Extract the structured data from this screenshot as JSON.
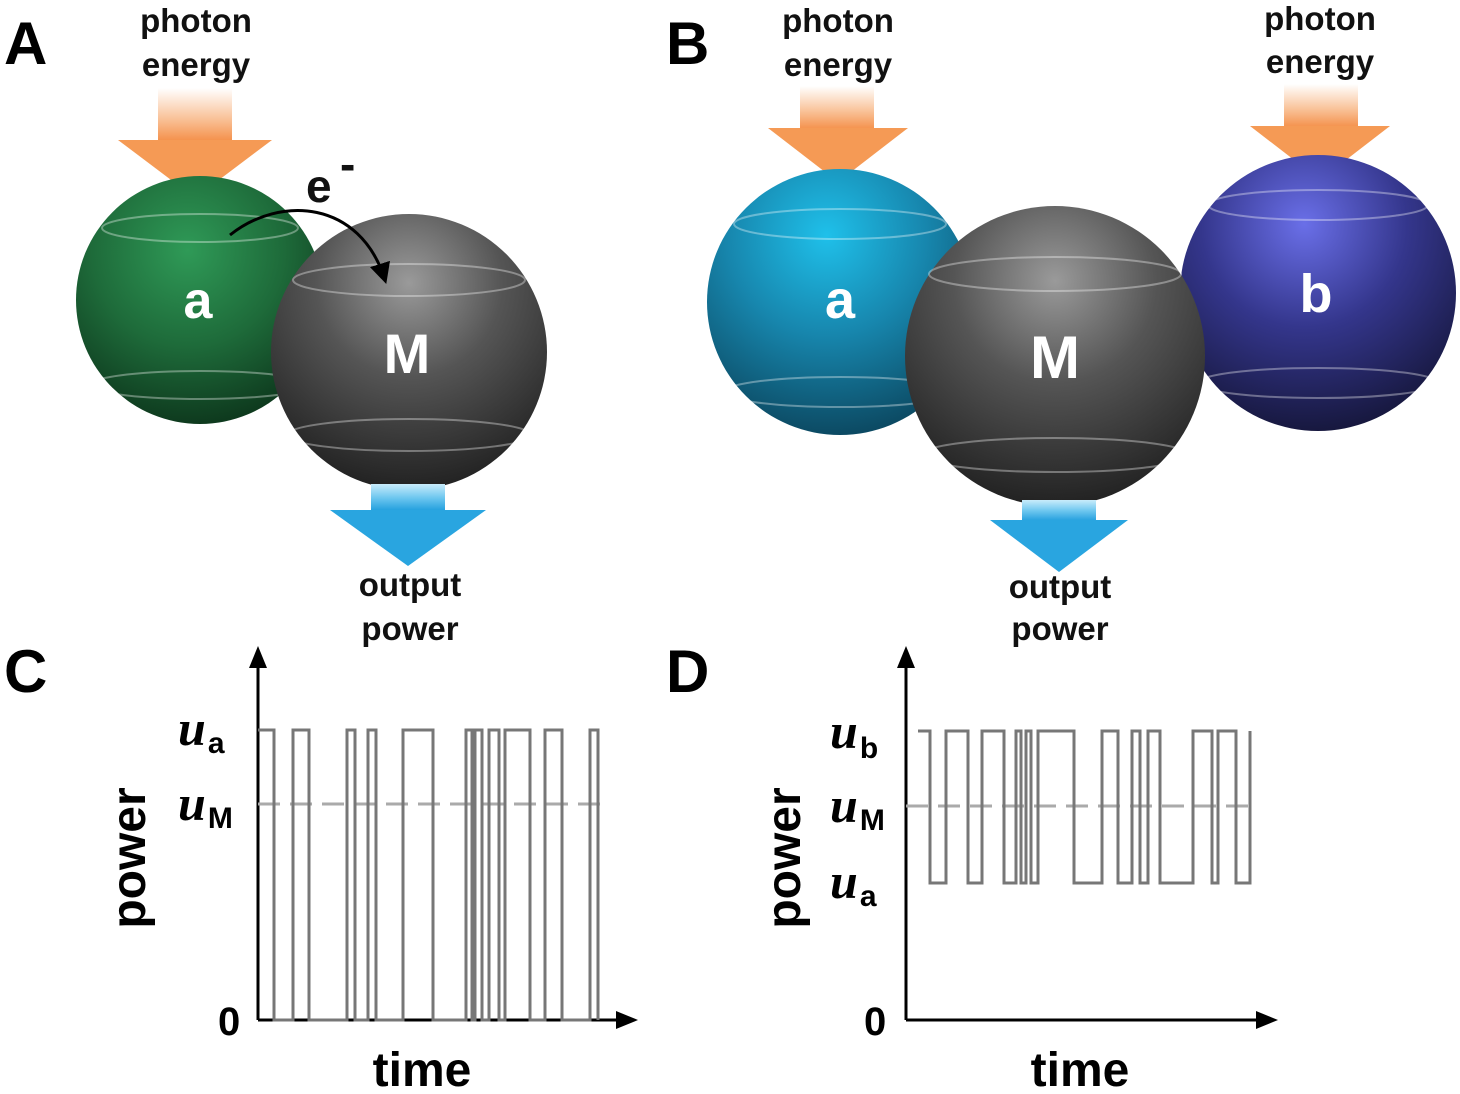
{
  "panels": {
    "A": {
      "label": "A",
      "input_label": [
        "photon",
        "energy"
      ],
      "electron_label": "e",
      "electron_charge": "-",
      "sphere_a_label": "a",
      "sphere_m_label": "M",
      "output_label": [
        "output",
        "power"
      ]
    },
    "B": {
      "label": "B",
      "input_label_left": [
        "photon",
        "energy"
      ],
      "input_label_right": [
        "photon",
        "energy"
      ],
      "sphere_a_label": "a",
      "sphere_m_label": "M",
      "sphere_b_label": "b",
      "output_label": [
        "output",
        "power"
      ]
    },
    "C": {
      "label": "C",
      "ylabel": "power",
      "xlabel": "time",
      "levels": {
        "u_a": {
          "sym": "u",
          "sub": "a"
        },
        "u_M": {
          "sym": "u",
          "sub": "M"
        },
        "zero": "0"
      }
    },
    "D": {
      "label": "D",
      "ylabel": "power",
      "xlabel": "time",
      "levels": {
        "u_b": {
          "sym": "u",
          "sub": "b"
        },
        "u_M": {
          "sym": "u",
          "sub": "M"
        },
        "u_a": {
          "sym": "u",
          "sub": "a"
        },
        "zero": "0"
      }
    }
  },
  "colors": {
    "sphere_a_A": "#1e6b3a",
    "sphere_m": "#4a4a4a",
    "sphere_a_B": "#1a8cb0",
    "sphere_b": "#2e2f78",
    "input_arrow": "#f59a55",
    "output_arrow": "#29a5e0",
    "trace": "#777777",
    "ref_line": "#aaaaaa"
  },
  "chart_data": [
    {
      "type": "line",
      "panel": "C",
      "title": "",
      "xlabel": "time",
      "ylabel": "power",
      "y_levels": [
        "0",
        "u_M",
        "u_a"
      ],
      "reference_line": "u_M",
      "series": [
        {
          "states": [
            "u_a",
            "0",
            "u_a",
            "0",
            "u_a",
            "0",
            "u_a",
            "0",
            "u_a",
            "0",
            "u_a",
            "0",
            "u_a",
            "0",
            "u_a",
            "0",
            "u_a",
            "0",
            "u_a",
            "0",
            "u_a",
            "0",
            "u_a",
            "0"
          ]
        }
      ]
    },
    {
      "type": "line",
      "panel": "D",
      "title": "",
      "xlabel": "time",
      "ylabel": "power",
      "y_levels": [
        "0",
        "u_a",
        "u_M",
        "u_b"
      ],
      "reference_line": "u_M",
      "series": [
        {
          "states": [
            "u_b",
            "u_a",
            "u_b",
            "u_a",
            "u_b",
            "u_a",
            "u_b",
            "u_a",
            "u_b",
            "u_a",
            "u_b",
            "u_a",
            "u_b",
            "u_a",
            "u_b",
            "u_a",
            "u_b",
            "u_a",
            "u_b",
            "u_a",
            "u_b",
            "u_a",
            "u_b",
            "u_a"
          ]
        }
      ]
    }
  ]
}
